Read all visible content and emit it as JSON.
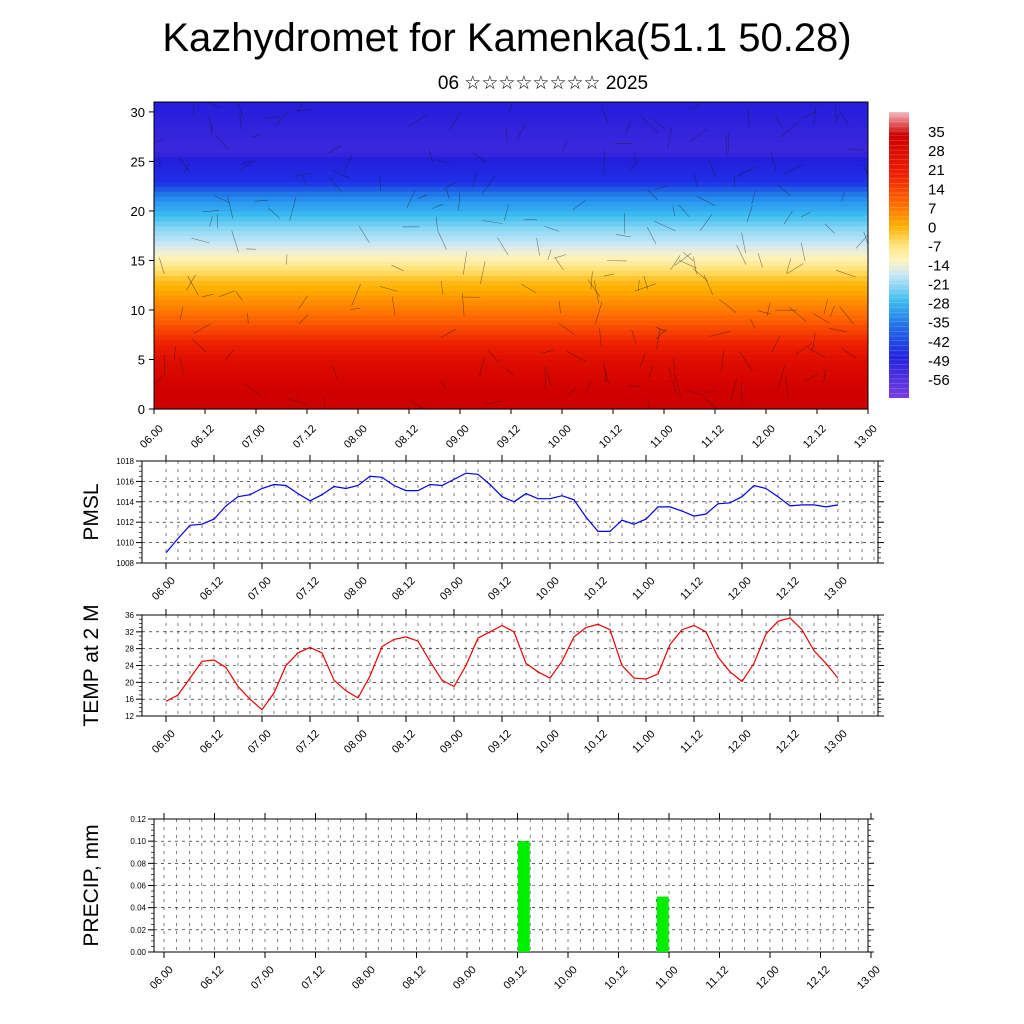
{
  "title": "Kazhydromet for Kamenka(51.1 50.28)",
  "subtitle": "06 ☆☆☆☆☆☆☆☆ 2025",
  "time_labels": [
    "06.00",
    "06.12",
    "07.00",
    "07.12",
    "08.00",
    "08.12",
    "09.00",
    "09.12",
    "10.00",
    "10.12",
    "11.00",
    "11.12",
    "12.00",
    "12.12",
    "13.00"
  ],
  "colors": {
    "pmsl_line": "#0000ee",
    "temp_line": "#ee0000",
    "precip_bar": "#00ee00"
  },
  "chart_data": [
    {
      "type": "heatmap",
      "description_label": "",
      "y_ticks": [
        0,
        5,
        10,
        15,
        20,
        25,
        30
      ],
      "ylim": [
        0,
        31
      ],
      "colorbar_labels": [
        "35",
        "28",
        "21",
        "14",
        "7",
        "0",
        "-7",
        "-14",
        "-21",
        "-28",
        "-35",
        "-42",
        "-49",
        "-56"
      ],
      "colorbar_range": [
        -63,
        42
      ],
      "temperature_profile_by_level": [
        {
          "level": 0,
          "value": 30
        },
        {
          "level": 5,
          "value": 25
        },
        {
          "level": 9,
          "value": 15
        },
        {
          "level": 13,
          "value": 5
        },
        {
          "level": 16,
          "value": -10
        },
        {
          "level": 18,
          "value": -20
        },
        {
          "level": 21,
          "value": -35
        },
        {
          "level": 23,
          "value": -50
        },
        {
          "level": 26,
          "value": -58
        },
        {
          "level": 31,
          "value": -56
        }
      ],
      "overlay": "wind streamlines"
    },
    {
      "type": "line",
      "ylabel": "PMSL",
      "ylim": [
        1008,
        1018
      ],
      "y_ticks": [
        1008,
        1010,
        1012,
        1014,
        1016,
        1018
      ],
      "series": [
        {
          "values": [
            1009.0,
            1010.4,
            1011.7,
            1011.8,
            1012.3,
            1013.6,
            1014.5,
            1014.7,
            1015.3,
            1015.7,
            1015.6,
            1014.8,
            1014.1,
            1014.7,
            1015.5,
            1015.3,
            1015.6,
            1016.5,
            1016.4,
            1015.6,
            1015.1,
            1015.1,
            1015.7,
            1015.6,
            1016.2,
            1016.8,
            1016.7,
            1015.7,
            1014.5,
            1014.0,
            1014.8,
            1014.3,
            1014.3,
            1014.6,
            1014.2,
            1012.5,
            1011.1,
            1011.1,
            1012.2,
            1011.8,
            1012.3,
            1013.5,
            1013.5,
            1013.1,
            1012.6,
            1012.8,
            1013.8,
            1013.9,
            1014.5,
            1015.6,
            1015.3,
            1014.5,
            1013.6,
            1013.7,
            1013.7,
            1013.5,
            1013.7
          ]
        }
      ]
    },
    {
      "type": "line",
      "ylabel": "TEMP at 2 M",
      "ylim": [
        12,
        36
      ],
      "y_ticks": [
        12,
        16,
        20,
        24,
        28,
        32,
        36
      ],
      "series": [
        {
          "values": [
            15.5,
            17.0,
            21.0,
            25.0,
            25.3,
            23.5,
            19.0,
            16.0,
            13.5,
            17.5,
            24.0,
            27.0,
            28.3,
            27.0,
            20.5,
            18.0,
            16.3,
            21.5,
            28.5,
            30.2,
            30.8,
            29.8,
            25.0,
            20.5,
            19.0,
            24.0,
            30.5,
            32.0,
            33.5,
            32.0,
            24.5,
            22.5,
            21.0,
            25.0,
            30.8,
            33.0,
            33.8,
            32.5,
            24.0,
            21.0,
            20.8,
            22.0,
            29.0,
            32.5,
            33.5,
            32.0,
            26.0,
            22.5,
            20.2,
            24.5,
            31.5,
            34.5,
            35.3,
            32.5,
            27.5,
            24.5,
            21.0
          ]
        }
      ]
    },
    {
      "type": "bar",
      "ylabel": "PRECIP, mm",
      "ylim": [
        0,
        0.12
      ],
      "y_ticks": [
        "0.00",
        "0.02",
        "0.04",
        "0.06",
        "0.08",
        "0.10",
        "0.12"
      ],
      "bars": [
        {
          "time_index": 28.5,
          "value": 0.1
        },
        {
          "time_index": 39.5,
          "value": 0.05
        }
      ]
    }
  ]
}
